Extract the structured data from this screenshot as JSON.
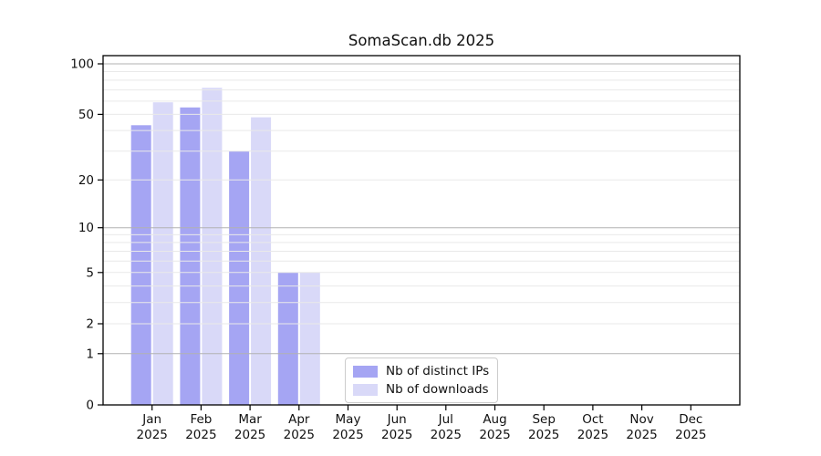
{
  "title": "SomaScan.db 2025",
  "chart_data": {
    "type": "bar",
    "title": "SomaScan.db 2025",
    "x_tick_months": [
      "Jan",
      "Feb",
      "Mar",
      "Apr",
      "May",
      "Jun",
      "Jul",
      "Aug",
      "Sep",
      "Oct",
      "Nov",
      "Dec"
    ],
    "x_tick_year": "2025",
    "series": [
      {
        "name": "Nb of distinct IPs",
        "color": "#a5a5f3",
        "values": [
          43,
          55,
          30,
          5,
          0,
          0,
          0,
          0,
          0,
          0,
          0,
          0
        ]
      },
      {
        "name": "Nb of downloads",
        "color": "#d9d9f8",
        "values": [
          59,
          72,
          48,
          5,
          0,
          0,
          0,
          0,
          0,
          0,
          0,
          0
        ]
      }
    ],
    "y_scale": "log1p",
    "y_ticks": [
      0,
      1,
      2,
      5,
      10,
      20,
      50,
      100
    ],
    "ylim": [
      0,
      112
    ],
    "grid": "horizontal",
    "grid_major": [
      1,
      10,
      100
    ],
    "grid_minor": [
      2,
      3,
      4,
      5,
      6,
      7,
      8,
      9,
      20,
      30,
      40,
      50,
      60,
      70,
      80,
      90
    ],
    "legend_position": "bottom-center",
    "colors": {
      "grid_major": "#b2b2b2",
      "grid_minor": "#e9e9e9",
      "axis": "#000000",
      "text": "#111111",
      "background": "#ffffff"
    }
  }
}
